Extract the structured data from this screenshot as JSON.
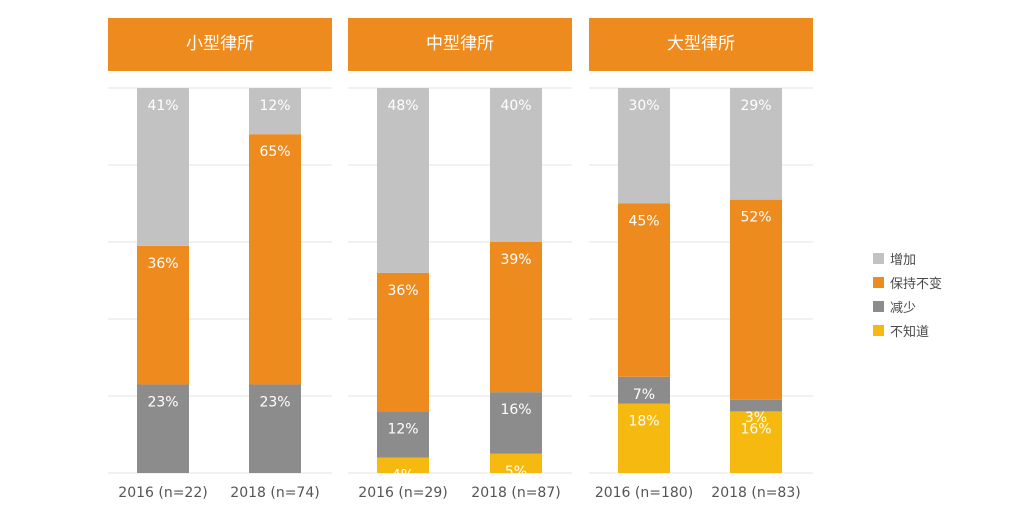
{
  "chart_data": {
    "type": "stacked-bar",
    "unit": "%",
    "panels": [
      {
        "title": "小型律所",
        "bars": [
          {
            "label": "2016 (n=22)",
            "values": {
              "增加": 41,
              "保持不变": 36,
              "减少": 23,
              "不知道": 0
            }
          },
          {
            "label": "2018 (n=74)",
            "values": {
              "增加": 12,
              "保持不变": 65,
              "减少": 23,
              "不知道": 0
            }
          }
        ]
      },
      {
        "title": "中型律所",
        "bars": [
          {
            "label": "2016 (n=29)",
            "values": {
              "增加": 48,
              "保持不变": 36,
              "减少": 12,
              "不知道": 4
            }
          },
          {
            "label": "2018 (n=87)",
            "values": {
              "增加": 40,
              "保持不变": 39,
              "减少": 16,
              "不知道": 5
            }
          }
        ]
      },
      {
        "title": "大型律所",
        "bars": [
          {
            "label": "2016 (n=180)",
            "values": {
              "增加": 30,
              "保持不变": 45,
              "减少": 7,
              "不知道": 18
            }
          },
          {
            "label": "2018 (n=83)",
            "values": {
              "增加": 29,
              "保持不变": 52,
              "减少": 3,
              "不知道": 16
            }
          }
        ]
      }
    ],
    "series": [
      {
        "name": "增加",
        "color": "#c2c2c2"
      },
      {
        "name": "保持不变",
        "color": "#ee8b1f"
      },
      {
        "name": "减少",
        "color": "#8c8c8c"
      },
      {
        "name": "不知道",
        "color": "#f5b90f"
      }
    ],
    "stack_order": [
      "不知道",
      "减少",
      "保持不变",
      "增加"
    ],
    "ylim": [
      0,
      100
    ],
    "grid": true,
    "legend_position": "right"
  }
}
